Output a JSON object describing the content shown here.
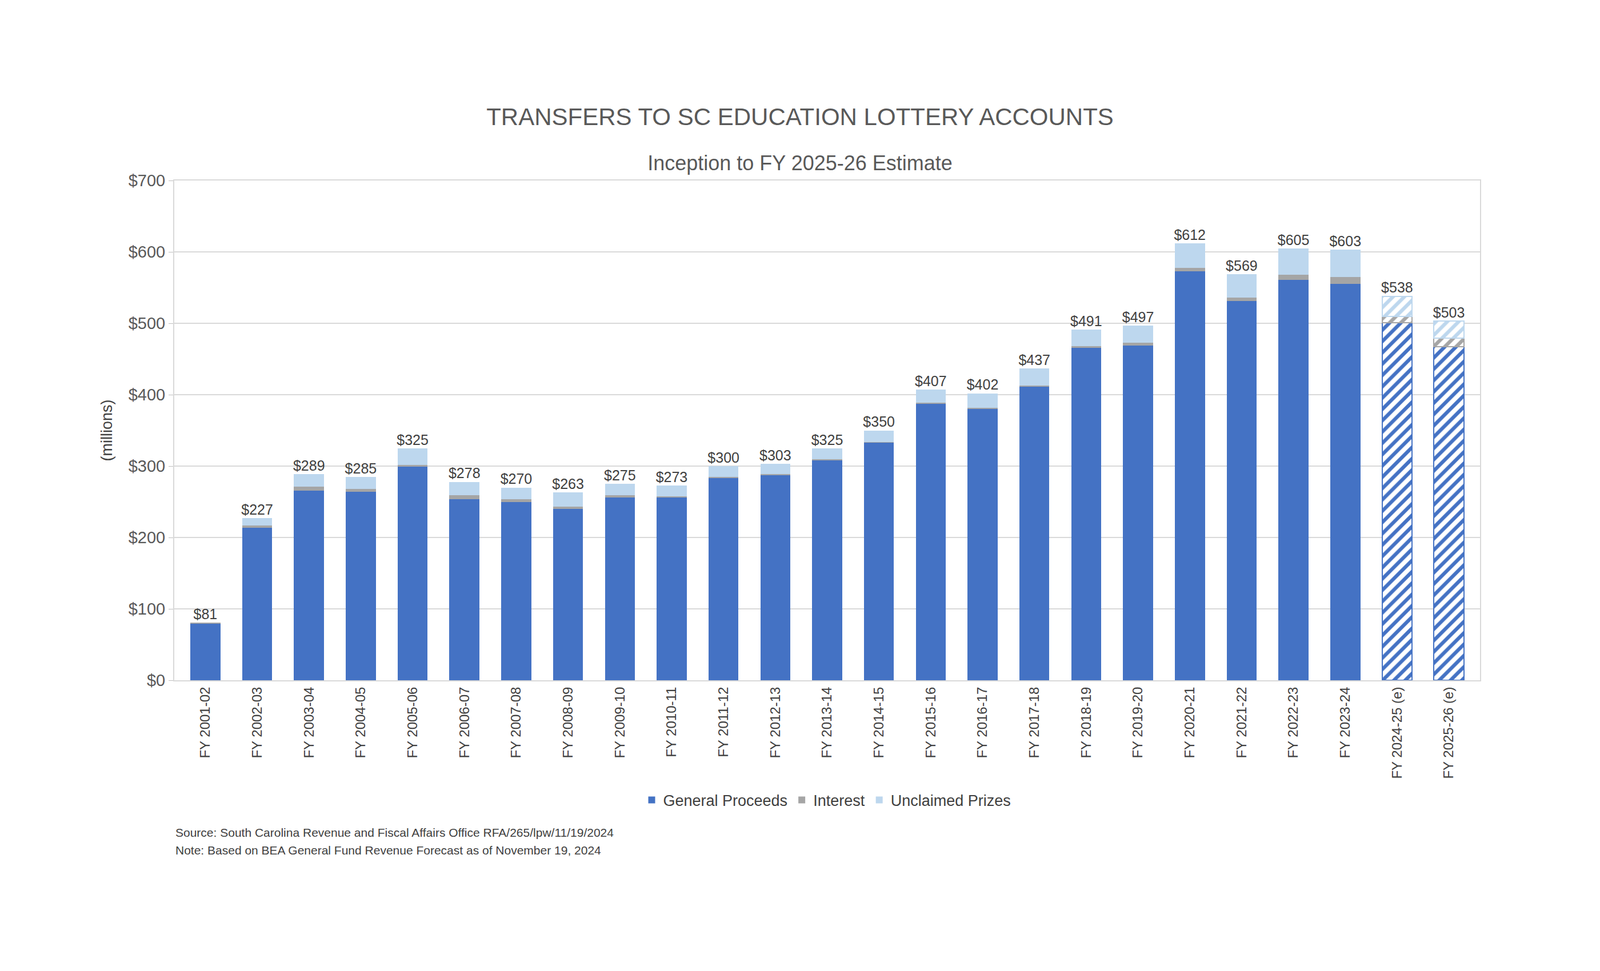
{
  "chart_data": {
    "type": "bar",
    "title": "TRANSFERS TO SC EDUCATION LOTTERY ACCOUNTS",
    "subtitle": "Inception to FY 2025-26 Estimate",
    "y_label": "(millions)",
    "source": "Source: South Carolina Revenue and Fiscal Affairs Office RFA/265/lpw/11/19/2024",
    "note": "Note: Based on BEA General Fund Revenue Forecast as of November 19, 2024",
    "categories": [
      "FY 2001-02",
      "FY 2002-03",
      "FY 2003-04",
      "FY 2004-05",
      "FY 2005-06",
      "FY 2006-07",
      "FY 2007-08",
      "FY 2008-09",
      "FY 2009-10",
      "FY 2010-11",
      "FY 2011-12",
      "FY 2012-13",
      "FY 2013-14",
      "FY 2014-15",
      "FY 2015-16",
      "FY 2016-17",
      "FY 2017-18",
      "FY 2018-19",
      "FY 2019-20",
      "FY 2020-21",
      "FY 2021-22",
      "FY 2022-23",
      "FY 2023-24",
      "FY 2024-25 (e)",
      "FY 2025-26 (e)"
    ],
    "estimated": [
      false,
      false,
      false,
      false,
      false,
      false,
      false,
      false,
      false,
      false,
      false,
      false,
      false,
      false,
      false,
      false,
      false,
      false,
      false,
      false,
      false,
      false,
      false,
      true,
      true
    ],
    "series": [
      {
        "name": "General Proceeds",
        "color": "#4472C4",
        "values": [
          79,
          214,
          266,
          264,
          299,
          254,
          250,
          240,
          256,
          256,
          283,
          287,
          308,
          333,
          387,
          380,
          411,
          466,
          469,
          573,
          531,
          561,
          555,
          501,
          467
        ]
      },
      {
        "name": "Interest",
        "color": "#A5A5A5",
        "values": [
          2,
          3,
          5,
          4,
          3,
          5,
          4,
          3,
          3,
          2,
          2,
          2,
          2,
          1,
          2,
          2,
          2,
          2,
          4,
          5,
          5,
          7,
          10,
          9,
          12
        ]
      },
      {
        "name": "Unclaimed Prizes",
        "color": "#BDD7EE",
        "values": [
          0,
          10,
          18,
          17,
          23,
          19,
          16,
          20,
          16,
          15,
          15,
          14,
          15,
          16,
          18,
          20,
          24,
          23,
          24,
          34,
          33,
          37,
          38,
          28,
          24
        ]
      }
    ],
    "totals": [
      81,
      227,
      289,
      285,
      325,
      278,
      270,
      263,
      275,
      273,
      300,
      303,
      325,
      350,
      407,
      402,
      437,
      491,
      497,
      612,
      569,
      605,
      603,
      538,
      503
    ],
    "total_labels": [
      "$81",
      "$227",
      "$289",
      "$285",
      "$325",
      "$278",
      "$270",
      "$263",
      "$275",
      "$273",
      "$300",
      "$303",
      "$325",
      "$350",
      "$407",
      "$402",
      "$437",
      "$491",
      "$497",
      "$612",
      "$569",
      "$605",
      "$603",
      "$538",
      "$503"
    ],
    "ylim": [
      0,
      700
    ],
    "yticks": [
      {
        "value": 0,
        "label": "$0"
      },
      {
        "value": 100,
        "label": "$100"
      },
      {
        "value": 200,
        "label": "$200"
      },
      {
        "value": 300,
        "label": "$300"
      },
      {
        "value": 400,
        "label": "$400"
      },
      {
        "value": 500,
        "label": "$500"
      },
      {
        "value": 600,
        "label": "$600"
      },
      {
        "value": 700,
        "label": "$700"
      }
    ],
    "stacked": true,
    "grid": true,
    "legend": "bottom",
    "data_labels": true
  }
}
